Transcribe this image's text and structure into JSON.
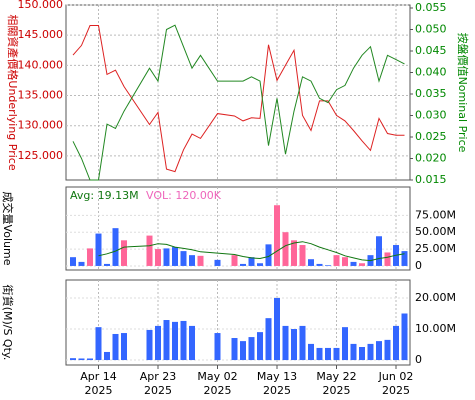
{
  "x_axis": {
    "x": [
      "2025-04-09",
      "2025-04-10",
      "2025-04-11",
      "2025-04-14",
      "2025-04-15",
      "2025-04-16",
      "2025-04-17",
      "2025-04-22",
      "2025-04-23",
      "2025-04-24",
      "2025-04-25",
      "2025-04-28",
      "2025-04-29",
      "2025-04-30",
      "2025-05-02",
      "2025-05-06",
      "2025-05-07",
      "2025-05-08",
      "2025-05-09",
      "2025-05-12",
      "2025-05-13",
      "2025-05-14",
      "2025-05-15",
      "2025-05-16",
      "2025-05-19",
      "2025-05-20",
      "2025-05-21",
      "2025-05-22",
      "2025-05-23",
      "2025-05-26",
      "2025-05-27",
      "2025-05-28",
      "2025-05-29",
      "2025-05-30",
      "2025-06-02",
      "2025-06-03"
    ],
    "xticks": [
      {
        "value": "2025-04-14",
        "label": "Apr 14\n2025"
      },
      {
        "value": "2025-04-23",
        "label": "Apr 23\n2025"
      },
      {
        "value": "2025-05-02",
        "label": "May 02\n2025"
      },
      {
        "value": "2025-05-13",
        "label": "May 13\n2025"
      },
      {
        "value": "2025-05-22",
        "label": "May 22\n2025"
      },
      {
        "value": "2025-06-02",
        "label": "Jun 02\n2025"
      }
    ],
    "grid": true
  },
  "chart_data": [
    {
      "type": "line",
      "ylabel": "相關資產價格Underlying Price",
      "y2label": "按盤價值Nominal Price",
      "ylim": [
        121,
        150
      ],
      "y2lim": [
        0.015,
        0.0557
      ],
      "yticks": [
        {
          "value": 125,
          "label": "125.000"
        },
        {
          "value": 130,
          "label": "130.000"
        },
        {
          "value": 135,
          "label": "135.000"
        },
        {
          "value": 140,
          "label": "140.000"
        },
        {
          "value": 145,
          "label": "145.000"
        },
        {
          "value": 150,
          "label": "150.000"
        }
      ],
      "y2ticks": [
        0.015,
        {
          "value": 0.02,
          "label": "0.020"
        },
        0.025,
        {
          "value": 0.03,
          "label": "0.030"
        },
        0.035,
        {
          "value": 0.04,
          "label": "0.040"
        },
        0.045,
        {
          "value": 0.05,
          "label": "0.050"
        },
        0.055
      ],
      "ycolor": "#cc0000",
      "y2color": "#008800",
      "grid": true,
      "series": [
        {
          "type": "line",
          "color": "#dd2222",
          "values": [
            141.7,
            143.3,
            146.6,
            146.6,
            138.5,
            139.2,
            136.5,
            130.2,
            132.2,
            122.8,
            122.4,
            126,
            128.6,
            127.9,
            132,
            131.6,
            130.8,
            131.3,
            131.2,
            143.4,
            137.5,
            140,
            142.5,
            131.7,
            129.2,
            134.1,
            134.1,
            131.7,
            130.8,
            129.2,
            127.5,
            125.9,
            131.2,
            128.7,
            128.4,
            128.4
          ]
        },
        {
          "type": "line",
          "color": "#228822",
          "axis": "y2",
          "values": [
            0.024,
            0.02,
            0.015,
            0.015,
            0.028,
            0.027,
            0.031,
            0.041,
            0.038,
            0.05,
            0.051,
            0.046,
            0.041,
            0.044,
            0.038,
            0.038,
            0.038,
            0.039,
            0.038,
            0.023,
            0.034,
            0.021,
            0.031,
            0.039,
            0.038,
            0.034,
            0.033,
            0.036,
            0.037,
            0.041,
            0.044,
            0.046,
            0.038,
            0.044,
            0.043,
            0.042
          ]
        }
      ]
    },
    {
      "type": "bar",
      "ylabel": "成交量Volume",
      "annotations": [
        {
          "text": "Avg: 19.13M",
          "color": "#117711"
        },
        {
          "text": "VOL: 120.00K",
          "color": "#ee66bb"
        }
      ],
      "ylim": [
        -6000000,
        117000000
      ],
      "y2ticks": [
        0,
        {
          "value": 25000000,
          "label": "25.00M"
        },
        {
          "value": 50000000,
          "label": "50.00M"
        },
        {
          "value": 75000000,
          "label": "75.00M"
        }
      ],
      "grid": true,
      "series": [
        {
          "type": "bar",
          "values": [
            13000000,
            6000000,
            26000000,
            48000000,
            3000000,
            56000000,
            38000000,
            45000000,
            25000000,
            26000000,
            28000000,
            22000000,
            16000000,
            15000000,
            9000000,
            16000000,
            3000000,
            13000000,
            4000000,
            32000000,
            90000000,
            50000000,
            38000000,
            31000000,
            10000000,
            3000000,
            1000000,
            16000000,
            13000000,
            6000000,
            4000000,
            16000000,
            44000000,
            20000000,
            31000000,
            22000000
          ],
          "colors": [
            "#3366ff",
            "#3366ff",
            "#ff6699",
            "#3366ff",
            "#3366ff",
            "#3366ff",
            "#ff6699",
            "#ff6699",
            "#ff6699",
            "#3366ff",
            "#3366ff",
            "#3366ff",
            "#3366ff",
            "#ff6699",
            "#3366ff",
            "#ff6699",
            "#3366ff",
            "#3366ff",
            "#3366ff",
            "#3366ff",
            "#ff6699",
            "#ff6699",
            "#ff6699",
            "#ff6699",
            "#3366ff",
            "#3366ff",
            "#3366ff",
            "#ff6699",
            "#ff6699",
            "#3366ff",
            "#ff6699",
            "#3366ff",
            "#3366ff",
            "#ff6699",
            "#3366ff",
            "#3366ff"
          ]
        },
        {
          "type": "line",
          "color": "#117711",
          "values": [
            null,
            null,
            null,
            15000000,
            18000000,
            22000000,
            28000000,
            30000000,
            33000000,
            32000000,
            28000000,
            26000000,
            24000000,
            21000000,
            19000000,
            17000000,
            14000000,
            12000000,
            11000000,
            14000000,
            22000000,
            30000000,
            34000000,
            36000000,
            33000000,
            28000000,
            24000000,
            20000000,
            15000000,
            12000000,
            9000000,
            8000000,
            11000000,
            13000000,
            16000000,
            18000000
          ]
        }
      ]
    },
    {
      "type": "bar",
      "ylabel": "街貨(M)/S Qty.",
      "ylim": [
        -1600000,
        25800000
      ],
      "y2ticks": [
        0,
        {
          "value": 10000000,
          "label": "10.00M"
        },
        {
          "value": 20000000,
          "label": "20.00M"
        }
      ],
      "grid": true,
      "series": [
        {
          "type": "bar",
          "color": "#3366ff",
          "values": [
            600000,
            500000,
            500000,
            10600000,
            2600000,
            8400000,
            8700000,
            9700000,
            11000000,
            12900000,
            12300000,
            12600000,
            11000000,
            null,
            8700000,
            7100000,
            6100000,
            7400000,
            9000000,
            13500000,
            20000000,
            11000000,
            10000000,
            11000000,
            5200000,
            3900000,
            3900000,
            3900000,
            10600000,
            5200000,
            4200000,
            5200000,
            6100000,
            6500000,
            11000000,
            15000000
          ]
        }
      ]
    }
  ]
}
